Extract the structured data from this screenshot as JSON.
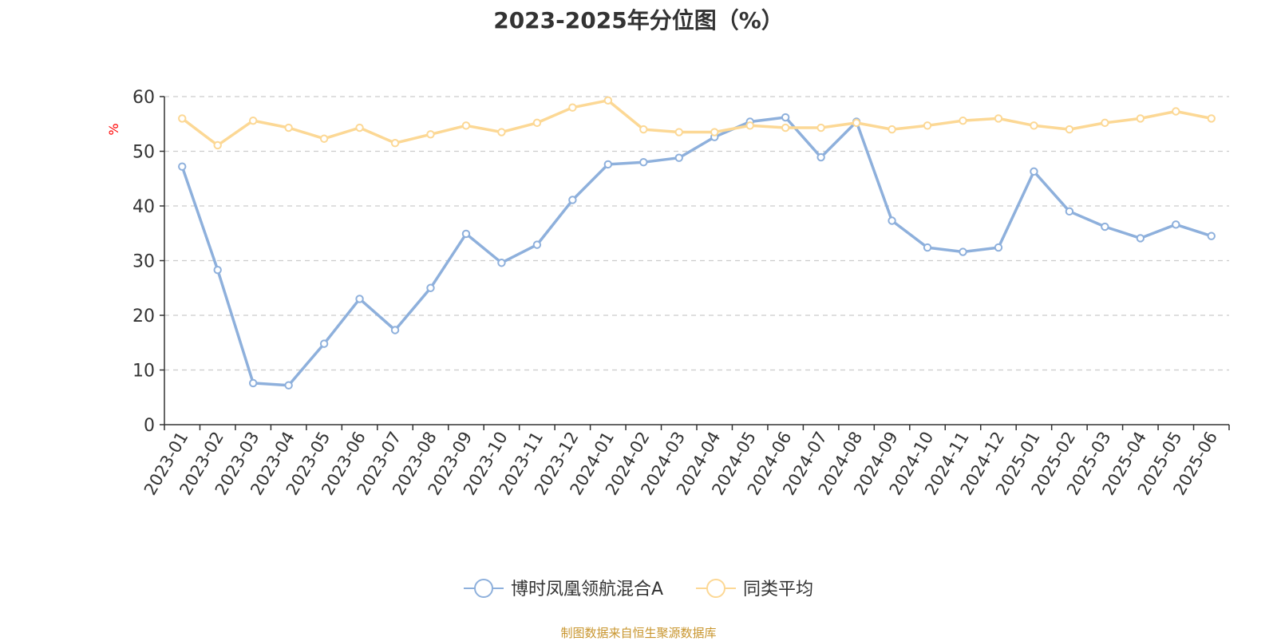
{
  "title": "2023-2025年分位图（%）",
  "source": "制图数据来自恒生聚源数据库",
  "chart_data": {
    "type": "line",
    "title": "2023-2025年分位图（%）",
    "ylabel": "%",
    "ylim": [
      0,
      60
    ],
    "yticks": [
      0,
      10,
      20,
      30,
      40,
      50,
      60
    ],
    "grid": true,
    "legend_position": "bottom-center",
    "x": [
      "2023-01",
      "2023-02",
      "2023-03",
      "2023-04",
      "2023-05",
      "2023-06",
      "2023-07",
      "2023-08",
      "2023-09",
      "2023-10",
      "2023-11",
      "2023-12",
      "2024-01",
      "2024-02",
      "2024-03",
      "2024-04",
      "2024-05",
      "2024-06",
      "2024-07",
      "2024-08",
      "2024-09",
      "2024-10",
      "2024-11",
      "2024-12",
      "2025-01",
      "2025-02",
      "2025-03",
      "2025-04",
      "2025-05",
      "2025-06"
    ],
    "series": [
      {
        "name": "博时凤凰领航混合A",
        "color": "#8eb0dc",
        "values": [
          47.2,
          28.3,
          7.6,
          7.2,
          14.8,
          23.0,
          17.3,
          25.0,
          34.9,
          29.6,
          32.9,
          41.1,
          47.6,
          48.0,
          48.8,
          52.6,
          55.4,
          56.2,
          48.9,
          55.4,
          37.3,
          32.4,
          31.6,
          32.4,
          46.3,
          39.0,
          36.2,
          34.1,
          36.6,
          34.5
        ]
      },
      {
        "name": "同类平均",
        "color": "#fcd895",
        "values": [
          56.0,
          51.1,
          55.6,
          54.3,
          52.3,
          54.3,
          51.5,
          53.1,
          54.7,
          53.5,
          55.2,
          58.0,
          59.3,
          54.0,
          53.5,
          53.5,
          54.7,
          54.3,
          54.3,
          55.2,
          54.0,
          54.7,
          55.6,
          56.0,
          54.7,
          54.0,
          55.2,
          56.0,
          57.3,
          56.0
        ]
      }
    ]
  }
}
